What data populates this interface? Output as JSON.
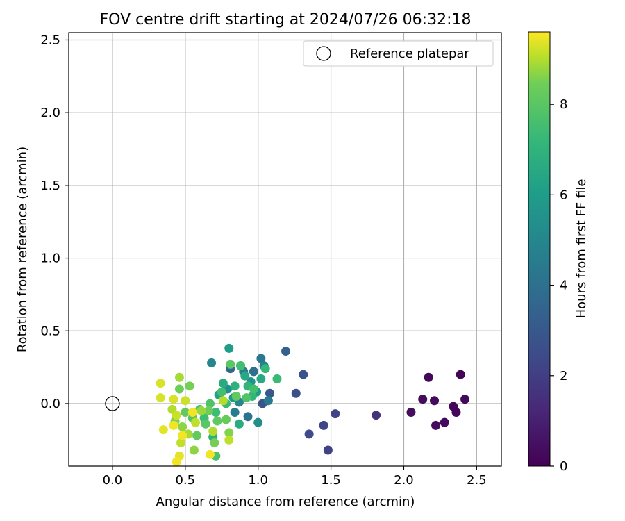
{
  "chart_data": {
    "type": "scatter",
    "title": "FOV centre drift starting at 2024/07/26 06:32:18",
    "xlabel": "Angular distance from reference (arcmin)",
    "ylabel": "Rotation from reference (arcmin)",
    "xlim": [
      -0.3,
      2.67
    ],
    "ylim": [
      -0.43,
      2.55
    ],
    "xticks": [
      0.0,
      0.5,
      1.0,
      1.5,
      2.0,
      2.5
    ],
    "xtick_labels": [
      "0.0",
      "0.5",
      "1.0",
      "1.5",
      "2.0",
      "2.5"
    ],
    "yticks": [
      0.0,
      0.5,
      1.0,
      1.5,
      2.0,
      2.5
    ],
    "ytick_labels": [
      "0.0",
      "0.5",
      "1.0",
      "1.5",
      "2.0",
      "2.5"
    ],
    "grid": true,
    "colormap": "viridis",
    "colorbar": {
      "label": "Hours from first FF file",
      "min": 0,
      "max": 9.6,
      "ticks": [
        0,
        2,
        4,
        6,
        8
      ],
      "tick_labels": [
        "0",
        "2",
        "4",
        "6",
        "8"
      ]
    },
    "reference": {
      "label": "Reference platepar",
      "x": 0.0,
      "y": 0.0,
      "marker": "open-circle"
    },
    "legend_position": "top-right",
    "series": [
      {
        "points": [
          {
            "x": 2.39,
            "y": 0.2,
            "c": 0.1
          },
          {
            "x": 2.17,
            "y": 0.18,
            "c": 0.2
          },
          {
            "x": 2.42,
            "y": 0.03,
            "c": 0.25
          },
          {
            "x": 2.13,
            "y": 0.03,
            "c": 0.35
          },
          {
            "x": 2.21,
            "y": 0.02,
            "c": 0.3
          },
          {
            "x": 2.34,
            "y": -0.02,
            "c": 0.2
          },
          {
            "x": 2.36,
            "y": -0.06,
            "c": 0.15
          },
          {
            "x": 2.05,
            "y": -0.06,
            "c": 0.4
          },
          {
            "x": 2.28,
            "y": -0.13,
            "c": 0.3
          },
          {
            "x": 2.22,
            "y": -0.15,
            "c": 0.35
          },
          {
            "x": 1.81,
            "y": -0.08,
            "c": 1.6
          },
          {
            "x": 1.53,
            "y": -0.07,
            "c": 2.2
          },
          {
            "x": 1.45,
            "y": -0.15,
            "c": 2.3
          },
          {
            "x": 1.35,
            "y": -0.21,
            "c": 2.4
          },
          {
            "x": 1.48,
            "y": -0.32,
            "c": 2.1
          },
          {
            "x": 1.26,
            "y": 0.07,
            "c": 2.6
          },
          {
            "x": 1.31,
            "y": 0.2,
            "c": 2.8
          },
          {
            "x": 1.19,
            "y": 0.36,
            "c": 3.4
          },
          {
            "x": 1.08,
            "y": 0.07,
            "c": 3.0
          },
          {
            "x": 1.03,
            "y": 0.0,
            "c": 2.9
          },
          {
            "x": 0.81,
            "y": 0.24,
            "c": 3.6
          },
          {
            "x": 0.97,
            "y": 0.22,
            "c": 4.0
          },
          {
            "x": 0.93,
            "y": -0.09,
            "c": 4.2
          },
          {
            "x": 1.07,
            "y": 0.02,
            "c": 4.4
          },
          {
            "x": 1.02,
            "y": 0.31,
            "c": 4.3
          },
          {
            "x": 0.84,
            "y": -0.06,
            "c": 4.5
          },
          {
            "x": 0.9,
            "y": 0.22,
            "c": 4.6
          },
          {
            "x": 1.04,
            "y": 0.26,
            "c": 4.8
          },
          {
            "x": 0.68,
            "y": 0.28,
            "c": 5.0
          },
          {
            "x": 0.8,
            "y": 0.38,
            "c": 6.0
          },
          {
            "x": 1.0,
            "y": -0.13,
            "c": 5.3
          },
          {
            "x": 0.87,
            "y": 0.01,
            "c": 5.0
          },
          {
            "x": 0.79,
            "y": 0.1,
            "c": 5.4
          },
          {
            "x": 0.95,
            "y": 0.15,
            "c": 5.6
          },
          {
            "x": 0.83,
            "y": 0.04,
            "c": 5.8
          },
          {
            "x": 0.99,
            "y": 0.08,
            "c": 6.0
          },
          {
            "x": 0.73,
            "y": 0.06,
            "c": 6.2
          },
          {
            "x": 0.88,
            "y": 0.26,
            "c": 6.4
          },
          {
            "x": 0.91,
            "y": 0.19,
            "c": 6.5
          },
          {
            "x": 0.76,
            "y": 0.14,
            "c": 6.6
          },
          {
            "x": 1.02,
            "y": 0.17,
            "c": 6.5
          },
          {
            "x": 0.69,
            "y": -0.23,
            "c": 6.8
          },
          {
            "x": 0.87,
            "y": -0.14,
            "c": 6.7
          },
          {
            "x": 0.84,
            "y": 0.12,
            "c": 6.9
          },
          {
            "x": 0.93,
            "y": 0.12,
            "c": 7.0
          },
          {
            "x": 0.96,
            "y": 0.05,
            "c": 7.1
          },
          {
            "x": 1.05,
            "y": 0.24,
            "c": 7.2
          },
          {
            "x": 1.13,
            "y": 0.17,
            "c": 7.3
          },
          {
            "x": 0.78,
            "y": 0.0,
            "c": 7.3
          },
          {
            "x": 0.71,
            "y": -0.06,
            "c": 7.4
          },
          {
            "x": 0.63,
            "y": -0.1,
            "c": 7.4
          },
          {
            "x": 0.88,
            "y": 0.26,
            "c": 7.5
          },
          {
            "x": 0.97,
            "y": 0.1,
            "c": 7.6
          },
          {
            "x": 0.75,
            "y": 0.08,
            "c": 7.5
          },
          {
            "x": 0.6,
            "y": -0.04,
            "c": 7.6
          },
          {
            "x": 0.71,
            "y": -0.36,
            "c": 7.7
          },
          {
            "x": 0.67,
            "y": 0.0,
            "c": 7.8
          },
          {
            "x": 0.55,
            "y": -0.1,
            "c": 7.9
          },
          {
            "x": 0.92,
            "y": 0.04,
            "c": 7.8
          },
          {
            "x": 0.81,
            "y": 0.27,
            "c": 8.0
          },
          {
            "x": 0.64,
            "y": -0.14,
            "c": 8.0
          },
          {
            "x": 0.72,
            "y": -0.12,
            "c": 8.1
          },
          {
            "x": 0.58,
            "y": -0.22,
            "c": 8.2
          },
          {
            "x": 0.5,
            "y": -0.06,
            "c": 8.2
          },
          {
            "x": 0.78,
            "y": -0.11,
            "c": 8.3
          },
          {
            "x": 0.85,
            "y": 0.05,
            "c": 8.2
          },
          {
            "x": 0.46,
            "y": 0.1,
            "c": 8.4
          },
          {
            "x": 0.53,
            "y": 0.12,
            "c": 8.5
          },
          {
            "x": 0.66,
            "y": -0.05,
            "c": 8.4
          },
          {
            "x": 0.7,
            "y": -0.27,
            "c": 8.5
          },
          {
            "x": 0.8,
            "y": -0.2,
            "c": 8.6
          },
          {
            "x": 0.43,
            "y": -0.12,
            "c": 8.6
          },
          {
            "x": 0.48,
            "y": -0.16,
            "c": 8.7
          },
          {
            "x": 0.56,
            "y": -0.32,
            "c": 8.7
          },
          {
            "x": 0.61,
            "y": -0.05,
            "c": 8.8
          },
          {
            "x": 0.46,
            "y": 0.18,
            "c": 8.9
          },
          {
            "x": 0.52,
            "y": -0.21,
            "c": 8.9
          },
          {
            "x": 0.69,
            "y": -0.19,
            "c": 9.0
          },
          {
            "x": 0.76,
            "y": 0.02,
            "c": 9.0
          },
          {
            "x": 0.41,
            "y": -0.04,
            "c": 9.0
          },
          {
            "x": 0.47,
            "y": -0.27,
            "c": 9.1
          },
          {
            "x": 0.8,
            "y": -0.25,
            "c": 9.1
          },
          {
            "x": 0.57,
            "y": -0.13,
            "c": 9.1
          },
          {
            "x": 0.44,
            "y": -0.08,
            "c": 9.2
          },
          {
            "x": 0.5,
            "y": 0.02,
            "c": 9.2
          },
          {
            "x": 0.33,
            "y": 0.14,
            "c": 9.3
          },
          {
            "x": 0.33,
            "y": 0.04,
            "c": 9.3
          },
          {
            "x": 0.42,
            "y": 0.03,
            "c": 9.3
          },
          {
            "x": 0.35,
            "y": -0.18,
            "c": 9.4
          },
          {
            "x": 0.46,
            "y": -0.36,
            "c": 9.4
          },
          {
            "x": 0.44,
            "y": -0.4,
            "c": 9.5
          },
          {
            "x": 0.55,
            "y": -0.06,
            "c": 9.5
          },
          {
            "x": 0.48,
            "y": -0.22,
            "c": 9.5
          },
          {
            "x": 0.42,
            "y": -0.15,
            "c": 9.5
          },
          {
            "x": 0.67,
            "y": -0.35,
            "c": 9.5
          }
        ]
      }
    ]
  }
}
